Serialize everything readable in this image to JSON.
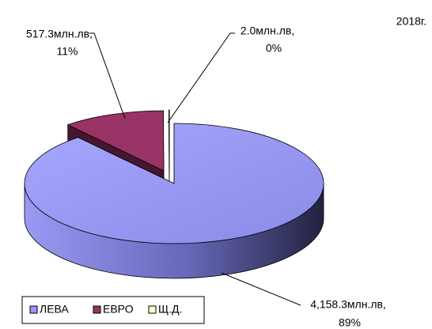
{
  "chart_data": {
    "type": "pie3d",
    "title": "2018г.",
    "categories": [
      "ЛЕВА",
      "ЕВРО",
      "Щ.Д."
    ],
    "values": [
      4158.3,
      517.3,
      2.0
    ],
    "value_labels": [
      "4,158.3млн.лв,",
      "517.3млн.лв,",
      "2.0млн.лв,"
    ],
    "percent_labels": [
      "89%",
      "11%",
      "0%"
    ],
    "colors": [
      "#9999ff",
      "#993366",
      "#ffffcc"
    ],
    "legend": "bottom-left"
  }
}
